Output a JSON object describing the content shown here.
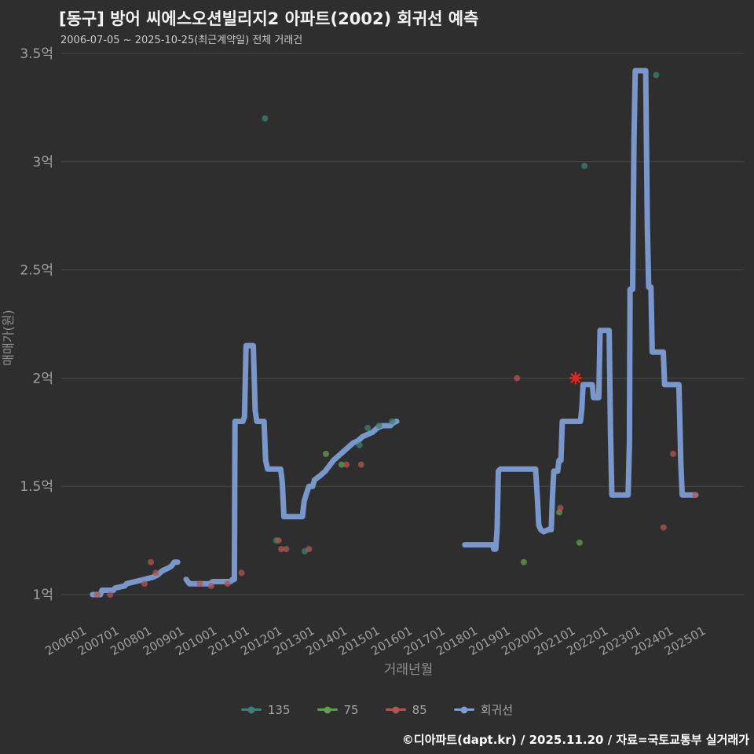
{
  "page": {
    "title": "[동구] 방어 씨에스오션빌리지2 아파트(2002) 회귀선 예측",
    "subtitle": "2006-07-05 ~ 2025-10-25(최근계약일) 전체 거래건",
    "footer": "©디아파트(dapt.kr) / 2025.11.20 / 자료=국토교통부 실거래가"
  },
  "colors": {
    "background": "#2e2e2e",
    "title_text": "#f2f2f2",
    "subtitle_text": "#c9c9c9",
    "axis_text": "#a0a0a0",
    "axis_title": "#8f8f8f",
    "gridline": "#474747",
    "footer_text": "#ffffff",
    "series_135": "#3d8073",
    "series_75": "#5fa04e",
    "series_85": "#b35454",
    "regression_line": "#7d9dd3",
    "highlight_marker": "#e02a1e"
  },
  "chart_data": {
    "type": "line",
    "title": "[동구] 방어 씨에스오션빌리지2 아파트(2002) 회귀선 예측",
    "subtitle": "2006-07-05 ~ 2025-10-25(최근계약일) 전체 거래건",
    "xlabel": "거래년월",
    "ylabel": "매매가(원)",
    "unit": "억원",
    "grid": "horizontal",
    "legend_position": "bottom",
    "x_ticks": [
      "200601",
      "200701",
      "200801",
      "200901",
      "201001",
      "201101",
      "201201",
      "201301",
      "201401",
      "201501",
      "201601",
      "201701",
      "201801",
      "201901",
      "202001",
      "202101",
      "202201",
      "202301",
      "202401",
      "202501"
    ],
    "y_ticks": {
      "values": [
        1,
        1.5,
        2,
        2.5,
        3,
        3.5
      ],
      "labels": [
        "1억",
        "1.5억",
        "2억",
        "2.5억",
        "3억",
        "3.5억"
      ]
    },
    "x_range_years": [
      2005.7,
      2025.9
    ],
    "y_range_eok": [
      0.95,
      3.5
    ],
    "series": [
      {
        "name": "135",
        "type": "scatter",
        "color": "#3d8073",
        "points": [
          [
            2011.6,
            3.2
          ],
          [
            2011.95,
            1.25
          ],
          [
            2012.82,
            1.2
          ],
          [
            2014.5,
            1.69
          ],
          [
            2014.75,
            1.77
          ],
          [
            2015.1,
            1.78
          ],
          [
            2015.5,
            1.8
          ],
          [
            2021.4,
            2.98
          ],
          [
            2023.6,
            3.4
          ]
        ]
      },
      {
        "name": "75",
        "type": "scatter",
        "color": "#5fa04e",
        "points": [
          [
            2013.47,
            1.65
          ],
          [
            2013.95,
            1.6
          ],
          [
            2019.54,
            1.15
          ],
          [
            2020.63,
            1.38
          ],
          [
            2021.25,
            1.24
          ]
        ]
      },
      {
        "name": "85",
        "type": "scatter",
        "color": "#b35454",
        "points": [
          [
            2006.45,
            1.0
          ],
          [
            2006.85,
            1.0
          ],
          [
            2007.9,
            1.05
          ],
          [
            2008.1,
            1.15
          ],
          [
            2008.25,
            1.1
          ],
          [
            2009.6,
            1.05
          ],
          [
            2009.95,
            1.04
          ],
          [
            2010.45,
            1.05
          ],
          [
            2010.88,
            1.1
          ],
          [
            2012.02,
            1.25
          ],
          [
            2012.1,
            1.21
          ],
          [
            2012.25,
            1.21
          ],
          [
            2012.95,
            1.21
          ],
          [
            2014.1,
            1.6
          ],
          [
            2014.55,
            1.6
          ],
          [
            2019.33,
            2.0
          ],
          [
            2020.66,
            1.4
          ],
          [
            2023.83,
            1.31
          ],
          [
            2024.12,
            1.65
          ],
          [
            2024.8,
            1.46
          ]
        ]
      },
      {
        "name": "회귀선",
        "type": "line",
        "color": "#7d9dd3",
        "segments": [
          [
            [
              2006.31,
              1.0
            ],
            [
              2006.55,
              1.0
            ],
            [
              2006.6,
              1.02
            ],
            [
              2006.95,
              1.02
            ],
            [
              2007.0,
              1.03
            ],
            [
              2007.3,
              1.04
            ],
            [
              2007.35,
              1.05
            ],
            [
              2007.62,
              1.06
            ],
            [
              2007.9,
              1.07
            ],
            [
              2008.15,
              1.08
            ],
            [
              2008.3,
              1.09
            ],
            [
              2008.45,
              1.11
            ],
            [
              2008.6,
              1.12
            ],
            [
              2008.72,
              1.13
            ],
            [
              2008.82,
              1.15
            ],
            [
              2008.92,
              1.15
            ]
          ],
          [
            [
              2009.18,
              1.07
            ],
            [
              2009.28,
              1.05
            ],
            [
              2009.9,
              1.05
            ],
            [
              2010.0,
              1.06
            ],
            [
              2010.55,
              1.06
            ],
            [
              2010.6,
              1.07
            ],
            [
              2010.66,
              1.07
            ],
            [
              2010.68,
              1.8
            ],
            [
              2010.92,
              1.8
            ],
            [
              2010.97,
              1.82
            ],
            [
              2011.02,
              2.15
            ],
            [
              2011.24,
              2.15
            ],
            [
              2011.3,
              1.85
            ],
            [
              2011.35,
              1.8
            ],
            [
              2011.57,
              1.8
            ],
            [
              2011.62,
              1.62
            ],
            [
              2011.68,
              1.58
            ],
            [
              2012.08,
              1.58
            ],
            [
              2012.13,
              1.52
            ],
            [
              2012.18,
              1.36
            ],
            [
              2012.75,
              1.36
            ],
            [
              2012.8,
              1.43
            ],
            [
              2012.88,
              1.47
            ],
            [
              2012.95,
              1.5
            ],
            [
              2013.06,
              1.5
            ],
            [
              2013.12,
              1.53
            ],
            [
              2013.3,
              1.55
            ],
            [
              2013.45,
              1.57
            ],
            [
              2013.55,
              1.59
            ],
            [
              2013.7,
              1.62
            ],
            [
              2013.85,
              1.64
            ],
            [
              2014.0,
              1.66
            ],
            [
              2014.15,
              1.68
            ],
            [
              2014.3,
              1.7
            ],
            [
              2014.45,
              1.71
            ],
            [
              2014.6,
              1.73
            ],
            [
              2014.75,
              1.74
            ],
            [
              2014.9,
              1.75
            ],
            [
              2015.05,
              1.77
            ],
            [
              2015.2,
              1.78
            ],
            [
              2015.45,
              1.78
            ],
            [
              2015.5,
              1.79
            ],
            [
              2015.62,
              1.8
            ],
            [
              2015.64,
              1.8
            ]
          ],
          [
            [
              2017.73,
              1.23
            ],
            [
              2018.58,
              1.23
            ],
            [
              2018.62,
              1.21
            ],
            [
              2018.68,
              1.21
            ],
            [
              2018.72,
              1.3
            ],
            [
              2018.76,
              1.57
            ],
            [
              2018.82,
              1.58
            ],
            [
              2019.9,
              1.58
            ],
            [
              2019.96,
              1.44
            ],
            [
              2020.0,
              1.32
            ],
            [
              2020.06,
              1.3
            ],
            [
              2020.15,
              1.29
            ],
            [
              2020.3,
              1.3
            ],
            [
              2020.38,
              1.3
            ],
            [
              2020.42,
              1.45
            ],
            [
              2020.46,
              1.57
            ],
            [
              2020.58,
              1.57
            ],
            [
              2020.62,
              1.62
            ],
            [
              2020.68,
              1.62
            ],
            [
              2020.72,
              1.8
            ],
            [
              2021.28,
              1.8
            ],
            [
              2021.32,
              1.86
            ],
            [
              2021.36,
              1.97
            ],
            [
              2021.64,
              1.97
            ],
            [
              2021.68,
              1.91
            ],
            [
              2021.84,
              1.91
            ],
            [
              2021.88,
              2.22
            ],
            [
              2022.16,
              2.22
            ],
            [
              2022.2,
              1.75
            ],
            [
              2022.24,
              1.46
            ],
            [
              2022.74,
              1.46
            ],
            [
              2022.78,
              1.7
            ],
            [
              2022.8,
              2.41
            ],
            [
              2022.88,
              2.41
            ],
            [
              2022.92,
              3.1
            ],
            [
              2022.96,
              3.42
            ],
            [
              2023.28,
              3.42
            ],
            [
              2023.33,
              2.7
            ],
            [
              2023.37,
              2.42
            ],
            [
              2023.44,
              2.42
            ],
            [
              2023.48,
              2.12
            ],
            [
              2023.82,
              2.12
            ],
            [
              2023.86,
              1.97
            ],
            [
              2024.3,
              1.97
            ],
            [
              2024.36,
              1.6
            ],
            [
              2024.4,
              1.46
            ],
            [
              2024.82,
              1.46
            ]
          ]
        ]
      }
    ],
    "highlight_point": {
      "series": "85",
      "x": 2021.13,
      "y": 2.0,
      "marker": "star",
      "color": "#e02a1e"
    }
  }
}
